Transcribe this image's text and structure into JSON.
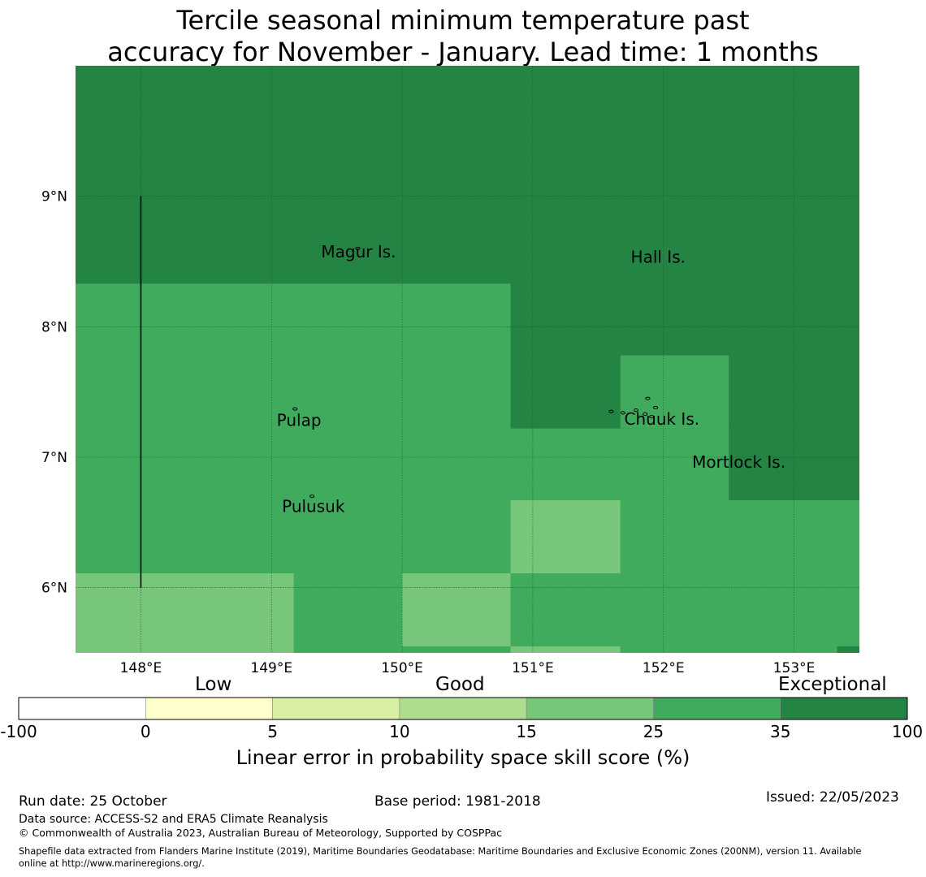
{
  "title": {
    "line1": "Tercile seasonal minimum temperature past",
    "line2": "accuracy for November - January. Lead time: 1 months"
  },
  "map": {
    "lon_range": [
      147.5,
      153.5
    ],
    "lat_range": [
      5.5,
      10.0
    ],
    "lon_ticks": [
      {
        "value": 148,
        "label": "148°E"
      },
      {
        "value": 149,
        "label": "149°E"
      },
      {
        "value": 150,
        "label": "150°E"
      },
      {
        "value": 151,
        "label": "151°E"
      },
      {
        "value": 152,
        "label": "152°E"
      },
      {
        "value": 153,
        "label": "153°E"
      }
    ],
    "lat_ticks": [
      {
        "value": 9,
        "label": "9°N"
      },
      {
        "value": 8,
        "label": "8°N"
      },
      {
        "value": 7,
        "label": "7°N"
      },
      {
        "value": 6,
        "label": "6°N"
      }
    ],
    "cells": [
      {
        "lon0": 147.5,
        "lon1": 153.5,
        "lat0": 5.5,
        "lat1": 10.0,
        "category": "exceptional"
      },
      {
        "lon0": 147.5,
        "lon1": 150.83,
        "lat0": 5.5,
        "lat1": 8.33,
        "category": "good-high"
      },
      {
        "lon0": 150.83,
        "lon1": 152.5,
        "lat0": 5.5,
        "lat1": 7.22,
        "category": "good-high"
      },
      {
        "lon0": 152.5,
        "lon1": 153.5,
        "lat0": 5.5,
        "lat1": 6.67,
        "category": "good-high"
      },
      {
        "lon0": 151.67,
        "lon1": 152.5,
        "lat0": 7.22,
        "lat1": 7.78,
        "category": "good-high"
      },
      {
        "lon0": 147.5,
        "lon1": 149.17,
        "lat0": 5.5,
        "lat1": 6.11,
        "category": "good"
      },
      {
        "lon0": 150.0,
        "lon1": 150.83,
        "lat0": 5.55,
        "lat1": 6.11,
        "category": "good"
      },
      {
        "lon0": 150.83,
        "lon1": 151.67,
        "lat0": 6.11,
        "lat1": 6.67,
        "category": "good"
      },
      {
        "lon0": 150.83,
        "lon1": 151.67,
        "lat0": 5.5,
        "lat1": 5.55,
        "category": "good"
      },
      {
        "lon0": 153.33,
        "lon1": 153.5,
        "lat0": 5.5,
        "lat1": 5.55,
        "category": "exceptional"
      }
    ],
    "boundary_line": {
      "lon": 148.0,
      "lat0": 6.0,
      "lat1": 9.0
    },
    "places": [
      {
        "name": "Magur Is.",
        "lon": 149.38,
        "lat": 8.53
      },
      {
        "name": "Hall Is.",
        "lon": 151.75,
        "lat": 8.49
      },
      {
        "name": "Pulap",
        "lon": 149.04,
        "lat": 7.24
      },
      {
        "name": "Chuuk Is.",
        "lon": 151.7,
        "lat": 7.25
      },
      {
        "name": "Mortlock Is.",
        "lon": 152.22,
        "lat": 6.92
      },
      {
        "name": "Pulusuk",
        "lon": 149.08,
        "lat": 6.58
      }
    ],
    "islands": [
      {
        "lon": 149.66,
        "lat": 8.6
      },
      {
        "lon": 149.18,
        "lat": 7.37
      },
      {
        "lon": 149.31,
        "lat": 6.7
      },
      {
        "lon": 151.6,
        "lat": 7.35
      },
      {
        "lon": 151.69,
        "lat": 7.34
      },
      {
        "lon": 151.79,
        "lat": 7.36
      },
      {
        "lon": 151.86,
        "lat": 7.33
      },
      {
        "lon": 151.88,
        "lat": 7.45
      },
      {
        "lon": 151.94,
        "lat": 7.38
      },
      {
        "lon": 151.91,
        "lat": 7.31
      }
    ]
  },
  "colorbar": {
    "headers": {
      "low": "Low",
      "good": "Good",
      "exceptional": "Exceptional"
    },
    "segments": [
      {
        "from": "-100",
        "to": "0",
        "color": "#ffffff"
      },
      {
        "from": "0",
        "to": "5",
        "color": "#ffffcc"
      },
      {
        "from": "5",
        "to": "10",
        "color": "#d9f0a3"
      },
      {
        "from": "10",
        "to": "15",
        "color": "#addd8e"
      },
      {
        "from": "15",
        "to": "25",
        "color": "#78c679"
      },
      {
        "from": "25",
        "to": "35",
        "color": "#41ab5d"
      },
      {
        "from": "35",
        "to": "100",
        "color": "#238443"
      }
    ],
    "ticks": [
      "-100",
      "0",
      "5",
      "10",
      "15",
      "25",
      "35",
      "100"
    ],
    "label": "Linear error in probability space skill score (%)"
  },
  "category_colors": {
    "exceptional": "#238443",
    "good-high": "#41ab5d",
    "good": "#78c679"
  },
  "footer": {
    "run_date": "Run date: 25 October",
    "base_period": "Base period: 1981-2018",
    "issued": "Issued: 22/05/2023",
    "data_source": "Data source: ACCESS-S2 and ERA5 Climate Reanalysis",
    "copyright": "© Commonwealth of Australia 2023, Australian Bureau of Meteorology, Supported by COSPPac",
    "shapefile_line1": "Shapefile data extracted from Flanders Marine Institute (2019), Maritime Boundaries Geodatabase: Maritime Boundaries and Exclusive Economic Zones (200NM), version 11. Available",
    "shapefile_line2": "online at http://www.marineregions.org/."
  }
}
